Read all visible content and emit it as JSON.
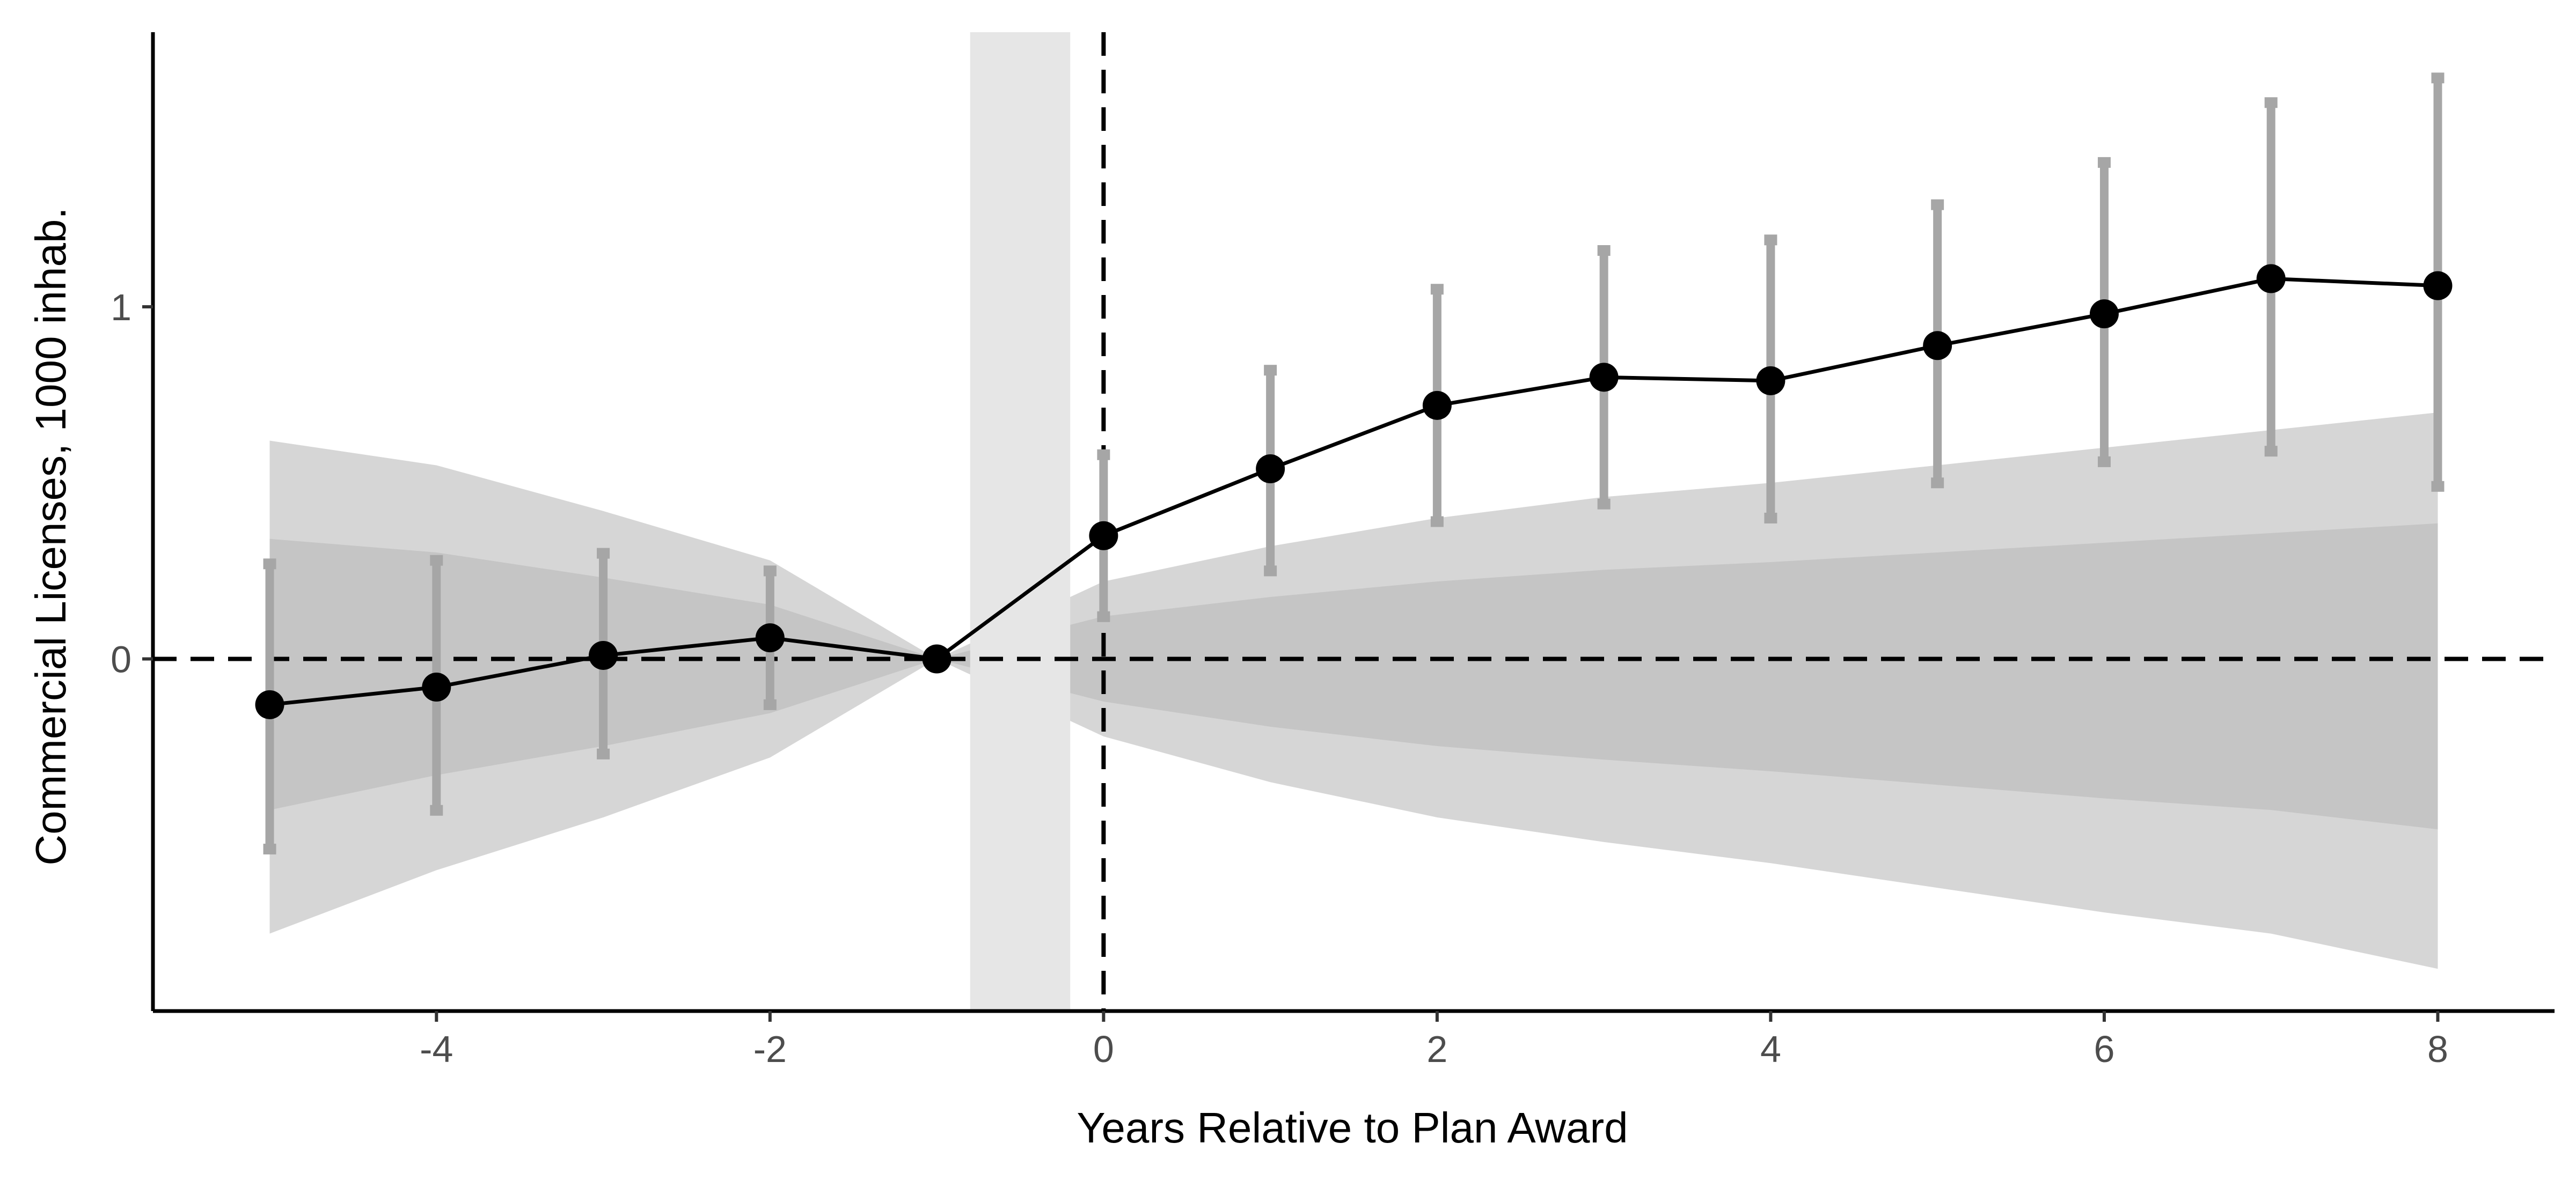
{
  "chart_data": {
    "type": "line",
    "xlabel": "Years Relative to Plan Award",
    "ylabel": "Commercial Licenses, 1000 inhab.",
    "xlim": [
      -5.7,
      8.7
    ],
    "ylim": [
      -1.0,
      1.78
    ],
    "x_ticks": [
      -4,
      -2,
      0,
      2,
      4,
      6,
      8
    ],
    "x_tick_labels": [
      "-4",
      "-2",
      "0",
      "2",
      "4",
      "6",
      "8"
    ],
    "y_ticks": [
      0,
      1
    ],
    "y_tick_labels": [
      "0",
      "1"
    ],
    "grid": false,
    "legend": "none",
    "reference_lines": [
      {
        "axis": "y",
        "value": 0,
        "style": "dashed"
      },
      {
        "axis": "x",
        "value": 0,
        "style": "dashed"
      }
    ],
    "shaded_band": {
      "x_start": -0.8,
      "x_end": -0.2,
      "color": "#e6e6e6"
    },
    "placebo_band": {
      "description_visible": false,
      "x": [
        -5,
        -4,
        -3,
        -2,
        -1,
        0,
        1,
        2,
        3,
        4,
        5,
        6,
        7,
        8
      ],
      "upper": [
        0.62,
        0.55,
        0.42,
        0.28,
        0.0,
        0.22,
        0.32,
        0.4,
        0.46,
        0.5,
        0.55,
        0.6,
        0.65,
        0.7
      ],
      "lower": [
        -0.78,
        -0.6,
        -0.45,
        -0.28,
        0.0,
        -0.22,
        -0.35,
        -0.45,
        -0.52,
        -0.58,
        -0.65,
        -0.72,
        -0.78,
        -0.88
      ],
      "color": "#c8c8c8"
    },
    "series": [
      {
        "x": [
          -5,
          -4,
          -3,
          -2,
          -1,
          0,
          1,
          2,
          3,
          4,
          5,
          6,
          7,
          8
        ],
        "y": [
          -0.13,
          -0.08,
          0.01,
          0.06,
          0.0,
          0.35,
          0.54,
          0.72,
          0.8,
          0.79,
          0.89,
          0.98,
          1.08,
          1.06
        ],
        "ci_low": [
          -0.54,
          -0.43,
          -0.27,
          -0.13,
          null,
          0.12,
          0.25,
          0.39,
          0.44,
          0.4,
          0.5,
          0.56,
          0.59,
          0.49
        ],
        "ci_high": [
          0.27,
          0.28,
          0.3,
          0.25,
          null,
          0.58,
          0.82,
          1.05,
          1.16,
          1.19,
          1.29,
          1.41,
          1.58,
          1.65
        ],
        "color": "#000000",
        "ci_color": "#a6a6a6"
      }
    ]
  }
}
